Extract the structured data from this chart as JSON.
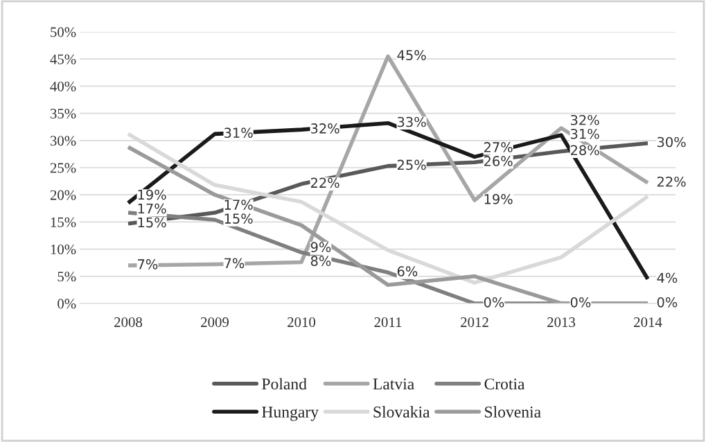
{
  "chart_data": {
    "type": "line",
    "categories": [
      "2008",
      "2009",
      "2010",
      "2011",
      "2012",
      "2013",
      "2014"
    ],
    "series": [
      {
        "name": "Poland",
        "color": "#595959",
        "values": [
          14.7,
          16.7,
          22,
          25.3,
          26,
          28,
          29.5
        ],
        "value_labels": [
          "15%",
          "17%",
          "22%",
          "25%",
          "26%",
          "28%",
          "30%"
        ]
      },
      {
        "name": "Latvia",
        "color": "#a6a6a6",
        "values": [
          7,
          7.2,
          7.6,
          45.5,
          19,
          32.3,
          22.2
        ],
        "value_labels": [
          "7%",
          "7%",
          "8%",
          "45%",
          "19%",
          "32%",
          "22%"
        ]
      },
      {
        "name": "Crotia",
        "color": "#7f7f7f",
        "values": [
          16.7,
          15.4,
          9.4,
          5.7,
          0,
          0,
          0
        ],
        "value_labels": [
          "17%",
          "15%",
          "9%",
          "6%",
          "0%",
          "0%",
          "0%"
        ]
      },
      {
        "name": "Hungary",
        "color": "#1a1a1a",
        "values": [
          18.5,
          31.2,
          32,
          33.2,
          27,
          31,
          4.5
        ],
        "value_labels": [
          "19%",
          "31%",
          "32%",
          "33%",
          "27%",
          "31%",
          "4%"
        ]
      },
      {
        "name": "Slovakia",
        "color": "#d9d9d9",
        "values": [
          31.2,
          21.8,
          18.7,
          9.8,
          3.8,
          8.5,
          19.7
        ]
      },
      {
        "name": "Slovenia",
        "color": "#9a9a9a",
        "values": [
          28.8,
          20,
          14.4,
          3.4,
          5,
          0,
          0
        ]
      }
    ],
    "ylim": [
      0,
      50
    ],
    "yticks": [
      {
        "value": 0,
        "label": "0%"
      },
      {
        "value": 5,
        "label": "5%"
      },
      {
        "value": 10,
        "label": "10%"
      },
      {
        "value": 15,
        "label": "15%"
      },
      {
        "value": 20,
        "label": "20%"
      },
      {
        "value": 25,
        "label": "25%"
      },
      {
        "value": 30,
        "label": "30%"
      },
      {
        "value": 35,
        "label": "35%"
      },
      {
        "value": 40,
        "label": "40%"
      },
      {
        "value": 45,
        "label": "45%"
      },
      {
        "value": 50,
        "label": "50%"
      }
    ],
    "grid": "y",
    "legend": "bottom",
    "marker": "none",
    "line_style": "solid"
  }
}
